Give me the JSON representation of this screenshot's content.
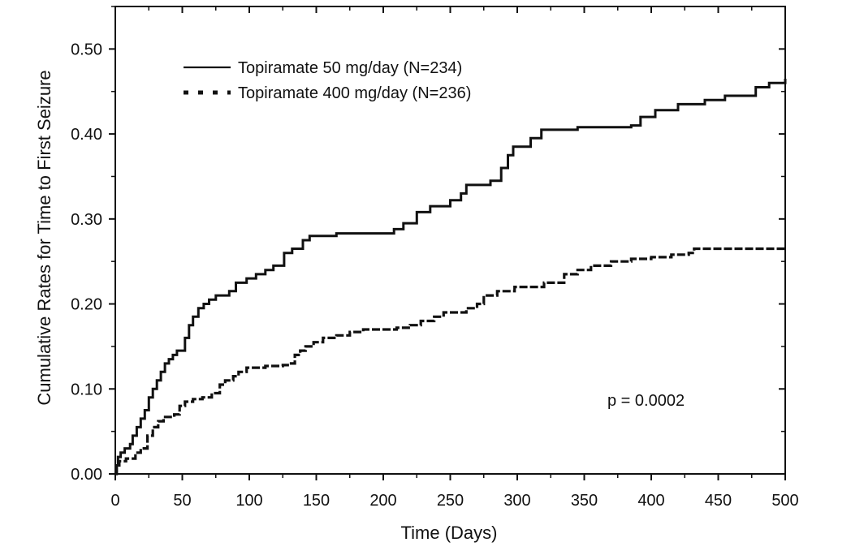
{
  "chart_data": {
    "type": "line",
    "xlabel": "Time (Days)",
    "ylabel": "Cumulative Rates for Time to First Seizure",
    "xlim": [
      0,
      500
    ],
    "ylim": [
      0,
      0.55
    ],
    "x_ticks": [
      "0",
      "50",
      "100",
      "150",
      "200",
      "250",
      "300",
      "350",
      "400",
      "450",
      "500"
    ],
    "y_ticks": [
      "0.00",
      "0.10",
      "0.20",
      "0.30",
      "0.40",
      "0.50"
    ],
    "grid": false,
    "legend_position": "top-left",
    "annotation": "p = 0.0002",
    "series": [
      {
        "name": "Topiramate 50 mg/day (N=234)",
        "style": "solid",
        "points": [
          [
            0,
            0
          ],
          [
            1,
            0.01
          ],
          [
            2,
            0.02
          ],
          [
            4,
            0.025
          ],
          [
            7,
            0.03
          ],
          [
            11,
            0.035
          ],
          [
            13,
            0.045
          ],
          [
            16,
            0.055
          ],
          [
            19,
            0.065
          ],
          [
            22,
            0.075
          ],
          [
            25,
            0.09
          ],
          [
            28,
            0.1
          ],
          [
            31,
            0.11
          ],
          [
            34,
            0.12
          ],
          [
            37,
            0.13
          ],
          [
            40,
            0.135
          ],
          [
            43,
            0.14
          ],
          [
            46,
            0.145
          ],
          [
            52,
            0.16
          ],
          [
            55,
            0.175
          ],
          [
            58,
            0.185
          ],
          [
            62,
            0.195
          ],
          [
            66,
            0.2
          ],
          [
            70,
            0.205
          ],
          [
            75,
            0.21
          ],
          [
            85,
            0.215
          ],
          [
            90,
            0.225
          ],
          [
            98,
            0.23
          ],
          [
            105,
            0.235
          ],
          [
            112,
            0.24
          ],
          [
            118,
            0.245
          ],
          [
            126,
            0.26
          ],
          [
            132,
            0.265
          ],
          [
            140,
            0.275
          ],
          [
            145,
            0.28
          ],
          [
            165,
            0.283
          ],
          [
            205,
            0.283
          ],
          [
            208,
            0.288
          ],
          [
            215,
            0.295
          ],
          [
            225,
            0.308
          ],
          [
            235,
            0.315
          ],
          [
            250,
            0.322
          ],
          [
            258,
            0.33
          ],
          [
            262,
            0.34
          ],
          [
            280,
            0.345
          ],
          [
            288,
            0.36
          ],
          [
            293,
            0.375
          ],
          [
            297,
            0.385
          ],
          [
            310,
            0.395
          ],
          [
            318,
            0.405
          ],
          [
            345,
            0.408
          ],
          [
            385,
            0.41
          ],
          [
            392,
            0.42
          ],
          [
            403,
            0.428
          ],
          [
            420,
            0.435
          ],
          [
            440,
            0.44
          ],
          [
            455,
            0.445
          ],
          [
            478,
            0.455
          ],
          [
            488,
            0.46
          ],
          [
            500,
            0.465
          ]
        ]
      },
      {
        "name": "Topiramate 400 mg/day (N=236)",
        "style": "dotted",
        "points": [
          [
            0,
            0
          ],
          [
            1,
            0.01
          ],
          [
            3,
            0.015
          ],
          [
            8,
            0.018
          ],
          [
            15,
            0.025
          ],
          [
            19,
            0.03
          ],
          [
            24,
            0.045
          ],
          [
            28,
            0.055
          ],
          [
            32,
            0.062
          ],
          [
            36,
            0.067
          ],
          [
            44,
            0.07
          ],
          [
            48,
            0.08
          ],
          [
            52,
            0.085
          ],
          [
            58,
            0.088
          ],
          [
            65,
            0.09
          ],
          [
            72,
            0.095
          ],
          [
            78,
            0.105
          ],
          [
            82,
            0.11
          ],
          [
            88,
            0.115
          ],
          [
            92,
            0.12
          ],
          [
            98,
            0.125
          ],
          [
            112,
            0.127
          ],
          [
            125,
            0.128
          ],
          [
            130,
            0.13
          ],
          [
            134,
            0.14
          ],
          [
            138,
            0.145
          ],
          [
            142,
            0.15
          ],
          [
            148,
            0.155
          ],
          [
            155,
            0.16
          ],
          [
            165,
            0.163
          ],
          [
            175,
            0.167
          ],
          [
            185,
            0.17
          ],
          [
            210,
            0.172
          ],
          [
            220,
            0.175
          ],
          [
            228,
            0.18
          ],
          [
            238,
            0.185
          ],
          [
            245,
            0.19
          ],
          [
            262,
            0.195
          ],
          [
            270,
            0.2
          ],
          [
            275,
            0.21
          ],
          [
            285,
            0.215
          ],
          [
            298,
            0.22
          ],
          [
            320,
            0.225
          ],
          [
            335,
            0.235
          ],
          [
            345,
            0.24
          ],
          [
            355,
            0.245
          ],
          [
            370,
            0.25
          ],
          [
            385,
            0.253
          ],
          [
            400,
            0.255
          ],
          [
            415,
            0.258
          ],
          [
            428,
            0.26
          ],
          [
            432,
            0.265
          ],
          [
            500,
            0.265
          ]
        ]
      }
    ]
  }
}
